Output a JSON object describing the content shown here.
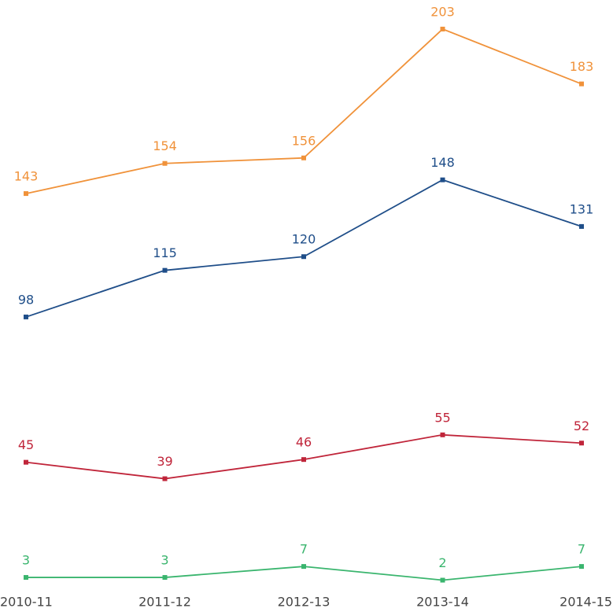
{
  "chart_data": {
    "type": "line",
    "categories": [
      "2010-11",
      "2011-12",
      "2012-13",
      "2013-14",
      "2014-15"
    ],
    "series": [
      {
        "name": null,
        "color": "#f0923a",
        "values": [
          143,
          154,
          156,
          203,
          183
        ]
      },
      {
        "name": null,
        "color": "#1f4e89",
        "values": [
          98,
          115,
          120,
          148,
          131
        ]
      },
      {
        "name": null,
        "color": "#c0253a",
        "values": [
          45,
          39,
          46,
          55,
          52
        ]
      },
      {
        "name": null,
        "color": "#3ab56e",
        "values": [
          3,
          3,
          7,
          2,
          7
        ]
      }
    ],
    "ylim": [
      0,
      213.6
    ]
  }
}
